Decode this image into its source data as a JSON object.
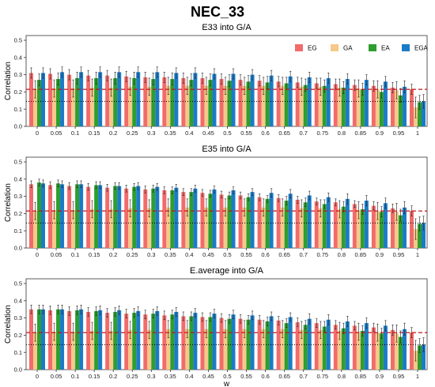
{
  "title": "NEC_33",
  "colors": {
    "EG": "#F26B6B",
    "GA": "#F5C98A",
    "EA": "#2E9E2E",
    "EGA": "#1B7BC6",
    "dashed_line": "#C0141A",
    "dotted_line": "#000000"
  },
  "chart_data": [
    {
      "type": "bar",
      "title": "E33 into G/A",
      "xlabel": "",
      "ylabel": "Correlation",
      "ylim": [
        0,
        0.5
      ],
      "y_ticks": [
        "0.0",
        "0.1",
        "0.2",
        "0.3",
        "0.4",
        "0.5"
      ],
      "categories": [
        "0",
        "0.05",
        "0.1",
        "0.15",
        "0.2",
        "0.25",
        "0.3",
        "0.35",
        "0.4",
        "0.45",
        "0.5",
        "0.55",
        "0.6",
        "0.65",
        "0.7",
        "0.75",
        "0.8",
        "0.85",
        "0.9",
        "0.95",
        "1"
      ],
      "legend_position": "top-right",
      "reference_lines": {
        "dashed": 0.215,
        "dotted": 0.145
      },
      "series": [
        {
          "name": "EG",
          "values": [
            0.31,
            0.305,
            0.3,
            0.295,
            0.295,
            0.29,
            0.285,
            0.285,
            0.28,
            0.28,
            0.275,
            0.27,
            0.265,
            0.26,
            0.255,
            0.25,
            0.245,
            0.24,
            0.235,
            0.225,
            0.215
          ],
          "errors": [
            0.03,
            0.03,
            0.03,
            0.03,
            0.03,
            0.03,
            0.03,
            0.03,
            0.03,
            0.03,
            0.03,
            0.03,
            0.03,
            0.03,
            0.03,
            0.03,
            0.03,
            0.03,
            0.03,
            0.03,
            0.03
          ]
        },
        {
          "name": "GA",
          "values": [
            0.215,
            0.22,
            0.22,
            0.225,
            0.225,
            0.23,
            0.23,
            0.235,
            0.235,
            0.235,
            0.235,
            0.235,
            0.235,
            0.235,
            0.23,
            0.23,
            0.225,
            0.22,
            0.215,
            0.21,
            0.11
          ],
          "errors": [
            0.05,
            0.05,
            0.05,
            0.05,
            0.05,
            0.05,
            0.05,
            0.05,
            0.05,
            0.05,
            0.05,
            0.05,
            0.05,
            0.05,
            0.05,
            0.05,
            0.05,
            0.05,
            0.05,
            0.05,
            0.06
          ]
        },
        {
          "name": "EA",
          "values": [
            0.27,
            0.275,
            0.28,
            0.28,
            0.28,
            0.28,
            0.275,
            0.275,
            0.27,
            0.27,
            0.265,
            0.26,
            0.255,
            0.25,
            0.24,
            0.235,
            0.225,
            0.215,
            0.2,
            0.18,
            0.14
          ],
          "errors": [
            0.035,
            0.035,
            0.035,
            0.035,
            0.035,
            0.035,
            0.035,
            0.035,
            0.035,
            0.035,
            0.035,
            0.035,
            0.035,
            0.035,
            0.035,
            0.035,
            0.035,
            0.035,
            0.035,
            0.04,
            0.04
          ]
        },
        {
          "name": "EGA",
          "values": [
            0.31,
            0.315,
            0.315,
            0.315,
            0.315,
            0.315,
            0.315,
            0.31,
            0.31,
            0.305,
            0.305,
            0.3,
            0.295,
            0.29,
            0.285,
            0.28,
            0.275,
            0.27,
            0.26,
            0.23,
            0.145
          ],
          "errors": [
            0.03,
            0.03,
            0.03,
            0.03,
            0.03,
            0.03,
            0.03,
            0.03,
            0.03,
            0.03,
            0.03,
            0.03,
            0.03,
            0.03,
            0.03,
            0.03,
            0.03,
            0.03,
            0.03,
            0.035,
            0.04
          ]
        }
      ]
    },
    {
      "type": "bar",
      "title": "E35 into G/A",
      "xlabel": "",
      "ylabel": "Correlation",
      "ylim": [
        0,
        0.5
      ],
      "y_ticks": [
        "0.0",
        "0.1",
        "0.2",
        "0.3",
        "0.4",
        "0.5"
      ],
      "categories": [
        "0",
        "0.05",
        "0.1",
        "0.15",
        "0.2",
        "0.25",
        "0.3",
        "0.35",
        "0.4",
        "0.45",
        "0.5",
        "0.55",
        "0.6",
        "0.65",
        "0.7",
        "0.75",
        "0.8",
        "0.85",
        "0.9",
        "0.95",
        "1"
      ],
      "reference_lines": {
        "dashed": 0.215,
        "dotted": 0.145
      },
      "series": [
        {
          "name": "EG",
          "values": [
            0.37,
            0.365,
            0.36,
            0.355,
            0.35,
            0.345,
            0.34,
            0.335,
            0.325,
            0.32,
            0.31,
            0.305,
            0.295,
            0.29,
            0.28,
            0.27,
            0.265,
            0.255,
            0.245,
            0.23,
            0.215
          ],
          "errors": [
            0.02,
            0.02,
            0.02,
            0.02,
            0.02,
            0.02,
            0.02,
            0.02,
            0.02,
            0.02,
            0.02,
            0.02,
            0.02,
            0.02,
            0.02,
            0.02,
            0.02,
            0.02,
            0.025,
            0.025,
            0.03
          ]
        },
        {
          "name": "GA",
          "values": [
            0.215,
            0.22,
            0.22,
            0.225,
            0.225,
            0.23,
            0.23,
            0.235,
            0.235,
            0.235,
            0.235,
            0.235,
            0.235,
            0.235,
            0.23,
            0.23,
            0.225,
            0.22,
            0.215,
            0.21,
            0.11
          ],
          "errors": [
            0.05,
            0.05,
            0.05,
            0.05,
            0.05,
            0.05,
            0.05,
            0.05,
            0.05,
            0.05,
            0.05,
            0.05,
            0.05,
            0.05,
            0.05,
            0.05,
            0.05,
            0.05,
            0.05,
            0.05,
            0.06
          ]
        },
        {
          "name": "EA",
          "values": [
            0.38,
            0.375,
            0.37,
            0.365,
            0.36,
            0.355,
            0.345,
            0.335,
            0.325,
            0.315,
            0.305,
            0.295,
            0.285,
            0.275,
            0.265,
            0.255,
            0.24,
            0.225,
            0.21,
            0.19,
            0.14
          ],
          "errors": [
            0.02,
            0.02,
            0.02,
            0.02,
            0.02,
            0.02,
            0.02,
            0.02,
            0.02,
            0.02,
            0.02,
            0.02,
            0.02,
            0.025,
            0.025,
            0.025,
            0.03,
            0.03,
            0.03,
            0.035,
            0.04
          ]
        },
        {
          "name": "EGA",
          "values": [
            0.375,
            0.37,
            0.37,
            0.365,
            0.36,
            0.36,
            0.355,
            0.35,
            0.345,
            0.34,
            0.335,
            0.325,
            0.32,
            0.315,
            0.305,
            0.295,
            0.285,
            0.275,
            0.26,
            0.235,
            0.145
          ],
          "errors": [
            0.02,
            0.02,
            0.02,
            0.02,
            0.02,
            0.02,
            0.02,
            0.02,
            0.02,
            0.02,
            0.02,
            0.02,
            0.025,
            0.025,
            0.025,
            0.025,
            0.03,
            0.03,
            0.03,
            0.035,
            0.04
          ]
        }
      ]
    },
    {
      "type": "bar",
      "title": "E.average into G/A",
      "xlabel": "w",
      "ylabel": "Correlation",
      "ylim": [
        0,
        0.5
      ],
      "y_ticks": [
        "0.0",
        "0.1",
        "0.2",
        "0.3",
        "0.4",
        "0.5"
      ],
      "categories": [
        "0",
        "0.05",
        "0.1",
        "0.15",
        "0.2",
        "0.25",
        "0.3",
        "0.35",
        "0.4",
        "0.45",
        "0.5",
        "0.55",
        "0.6",
        "0.65",
        "0.7",
        "0.75",
        "0.8",
        "0.85",
        "0.9",
        "0.95",
        "1"
      ],
      "reference_lines": {
        "dashed": 0.215,
        "dotted": 0.145
      },
      "series": [
        {
          "name": "EG",
          "values": [
            0.35,
            0.345,
            0.34,
            0.335,
            0.33,
            0.325,
            0.32,
            0.315,
            0.31,
            0.305,
            0.3,
            0.295,
            0.29,
            0.285,
            0.275,
            0.27,
            0.26,
            0.255,
            0.245,
            0.23,
            0.215
          ],
          "errors": [
            0.025,
            0.025,
            0.025,
            0.025,
            0.025,
            0.025,
            0.025,
            0.025,
            0.025,
            0.025,
            0.025,
            0.025,
            0.025,
            0.025,
            0.025,
            0.025,
            0.025,
            0.025,
            0.025,
            0.03,
            0.03
          ]
        },
        {
          "name": "GA",
          "values": [
            0.215,
            0.22,
            0.22,
            0.225,
            0.225,
            0.23,
            0.23,
            0.235,
            0.235,
            0.235,
            0.235,
            0.235,
            0.235,
            0.235,
            0.23,
            0.23,
            0.225,
            0.22,
            0.215,
            0.21,
            0.11
          ],
          "errors": [
            0.05,
            0.05,
            0.05,
            0.05,
            0.05,
            0.05,
            0.05,
            0.05,
            0.05,
            0.05,
            0.05,
            0.05,
            0.05,
            0.05,
            0.05,
            0.05,
            0.05,
            0.05,
            0.05,
            0.05,
            0.06
          ]
        },
        {
          "name": "EA",
          "values": [
            0.35,
            0.35,
            0.345,
            0.34,
            0.335,
            0.33,
            0.325,
            0.32,
            0.31,
            0.305,
            0.295,
            0.29,
            0.28,
            0.27,
            0.26,
            0.25,
            0.24,
            0.225,
            0.21,
            0.19,
            0.14
          ],
          "errors": [
            0.025,
            0.025,
            0.025,
            0.025,
            0.025,
            0.025,
            0.025,
            0.025,
            0.025,
            0.025,
            0.025,
            0.025,
            0.025,
            0.025,
            0.025,
            0.03,
            0.03,
            0.03,
            0.03,
            0.035,
            0.04
          ]
        },
        {
          "name": "EGA",
          "values": [
            0.35,
            0.35,
            0.35,
            0.345,
            0.345,
            0.34,
            0.34,
            0.335,
            0.33,
            0.325,
            0.32,
            0.315,
            0.31,
            0.305,
            0.295,
            0.29,
            0.28,
            0.27,
            0.255,
            0.235,
            0.145
          ],
          "errors": [
            0.025,
            0.025,
            0.025,
            0.025,
            0.025,
            0.025,
            0.025,
            0.025,
            0.025,
            0.025,
            0.025,
            0.025,
            0.025,
            0.025,
            0.03,
            0.03,
            0.03,
            0.03,
            0.03,
            0.035,
            0.04
          ]
        }
      ]
    }
  ]
}
